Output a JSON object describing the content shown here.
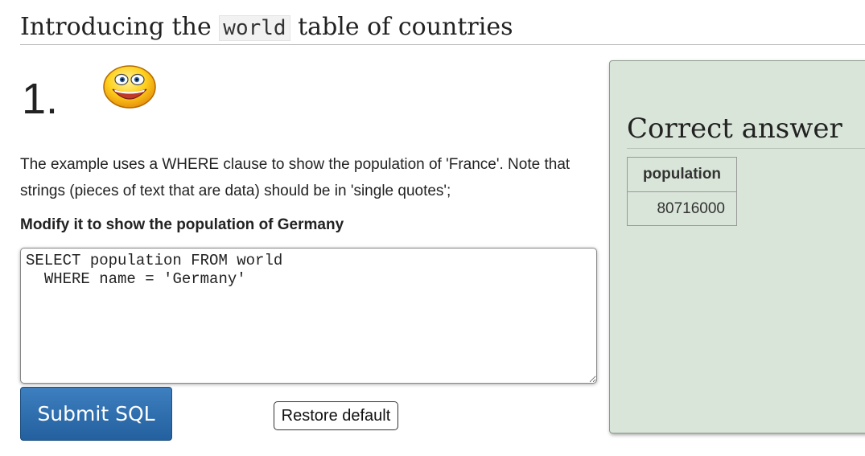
{
  "header": {
    "title_before": "Introducing the",
    "title_code": "world",
    "title_after": "table of countries"
  },
  "question": {
    "number": "1.",
    "icon": "smiley-face-icon",
    "intro": "The example uses a WHERE clause to show the population of 'France'. Note that strings (pieces of text that are data) should be in 'single quotes';",
    "task": "Modify it to show the population of Germany"
  },
  "editor": {
    "sql": "SELECT population FROM world\n  WHERE name = 'Germany'"
  },
  "buttons": {
    "submit_label": "Submit SQL",
    "restore_label": "Restore default"
  },
  "answer": {
    "heading": "Correct answer",
    "columns": [
      "population"
    ],
    "rows": [
      [
        "80716000"
      ]
    ]
  },
  "colors": {
    "panel_background": "#d9e5d9",
    "submit_button": "#2f6fae"
  }
}
